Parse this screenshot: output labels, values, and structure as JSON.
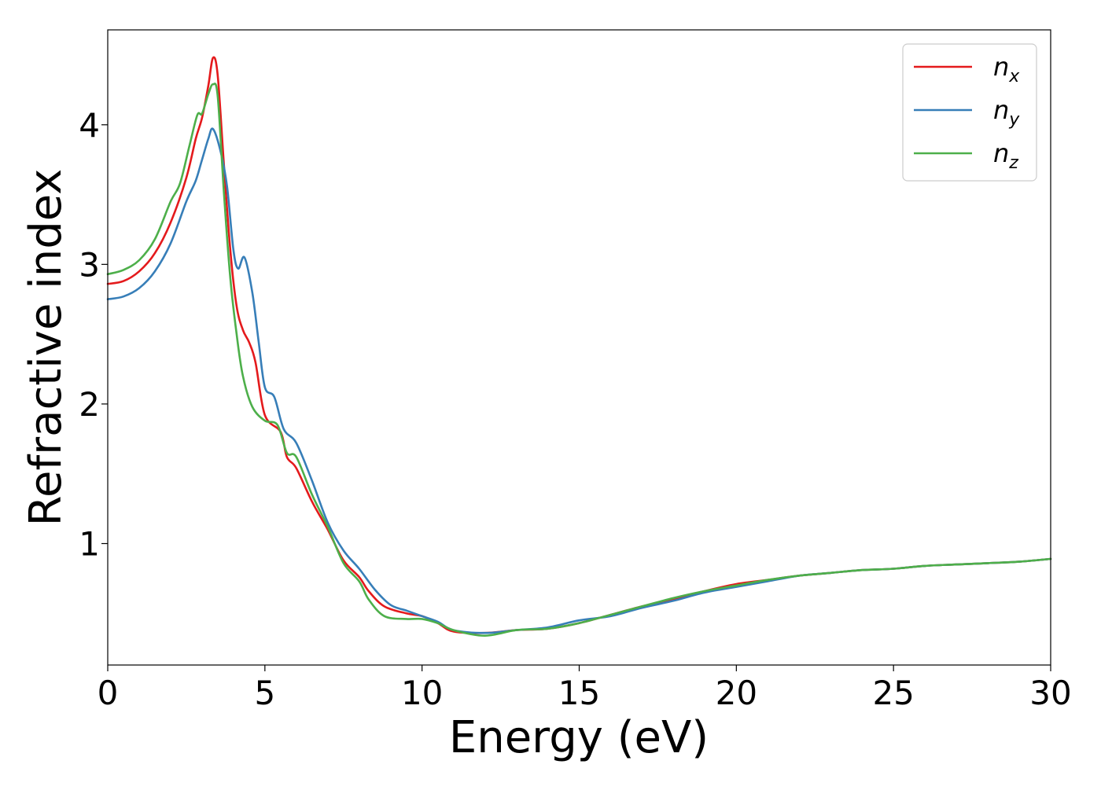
{
  "chart_data": {
    "type": "line",
    "title": "",
    "xlabel": "Energy (eV)",
    "ylabel": "Refractive index",
    "xlim": [
      0,
      30
    ],
    "ylim": [
      0.13,
      4.68
    ],
    "xticks": [
      0,
      5,
      10,
      15,
      20,
      25,
      30
    ],
    "yticks": [
      1,
      2,
      3,
      4
    ],
    "grid": false,
    "legend_position": "top-right",
    "series": [
      {
        "name": "n_x",
        "legend_base": "n",
        "legend_sub": "x",
        "color": "#e41a1c",
        "points": [
          [
            0,
            2.86
          ],
          [
            0.5,
            2.88
          ],
          [
            1.0,
            2.95
          ],
          [
            1.5,
            3.08
          ],
          [
            2.0,
            3.3
          ],
          [
            2.5,
            3.62
          ],
          [
            2.8,
            3.9
          ],
          [
            3.0,
            4.05
          ],
          [
            3.2,
            4.28
          ],
          [
            3.35,
            4.48
          ],
          [
            3.5,
            4.35
          ],
          [
            3.7,
            3.7
          ],
          [
            3.9,
            3.1
          ],
          [
            4.1,
            2.7
          ],
          [
            4.3,
            2.53
          ],
          [
            4.5,
            2.44
          ],
          [
            4.7,
            2.3
          ],
          [
            5.0,
            1.92
          ],
          [
            5.5,
            1.8
          ],
          [
            5.7,
            1.62
          ],
          [
            6.0,
            1.54
          ],
          [
            6.5,
            1.3
          ],
          [
            7.0,
            1.1
          ],
          [
            7.5,
            0.88
          ],
          [
            8.0,
            0.76
          ],
          [
            8.3,
            0.66
          ],
          [
            8.8,
            0.55
          ],
          [
            9.5,
            0.5
          ],
          [
            10,
            0.48
          ],
          [
            10.5,
            0.43
          ],
          [
            11,
            0.37
          ],
          [
            12,
            0.36
          ],
          [
            13,
            0.38
          ],
          [
            14,
            0.39
          ],
          [
            15,
            0.43
          ],
          [
            16,
            0.49
          ],
          [
            17,
            0.55
          ],
          [
            18,
            0.6
          ],
          [
            19,
            0.66
          ],
          [
            20,
            0.71
          ],
          [
            21,
            0.74
          ],
          [
            22,
            0.77
          ],
          [
            23,
            0.79
          ],
          [
            24,
            0.81
          ],
          [
            25,
            0.82
          ],
          [
            26,
            0.84
          ],
          [
            27,
            0.85
          ],
          [
            28,
            0.86
          ],
          [
            29,
            0.87
          ],
          [
            30,
            0.89
          ]
        ]
      },
      {
        "name": "n_y",
        "legend_base": "n",
        "legend_sub": "y",
        "color": "#377eb8",
        "points": [
          [
            0,
            2.75
          ],
          [
            0.5,
            2.77
          ],
          [
            1.0,
            2.83
          ],
          [
            1.5,
            2.95
          ],
          [
            2.0,
            3.15
          ],
          [
            2.5,
            3.45
          ],
          [
            2.8,
            3.6
          ],
          [
            3.0,
            3.75
          ],
          [
            3.2,
            3.9
          ],
          [
            3.35,
            3.97
          ],
          [
            3.6,
            3.8
          ],
          [
            3.8,
            3.55
          ],
          [
            4.0,
            3.1
          ],
          [
            4.15,
            2.97
          ],
          [
            4.35,
            3.05
          ],
          [
            4.6,
            2.8
          ],
          [
            4.8,
            2.45
          ],
          [
            5.0,
            2.12
          ],
          [
            5.3,
            2.05
          ],
          [
            5.6,
            1.82
          ],
          [
            6.0,
            1.72
          ],
          [
            6.5,
            1.45
          ],
          [
            7.0,
            1.15
          ],
          [
            7.5,
            0.95
          ],
          [
            8.0,
            0.82
          ],
          [
            8.5,
            0.67
          ],
          [
            9.0,
            0.56
          ],
          [
            9.5,
            0.52
          ],
          [
            10,
            0.48
          ],
          [
            10.5,
            0.44
          ],
          [
            11,
            0.38
          ],
          [
            12,
            0.36
          ],
          [
            13,
            0.38
          ],
          [
            14,
            0.4
          ],
          [
            15,
            0.45
          ],
          [
            16,
            0.48
          ],
          [
            17,
            0.54
          ],
          [
            18,
            0.59
          ],
          [
            19,
            0.65
          ],
          [
            20,
            0.69
          ],
          [
            21,
            0.73
          ],
          [
            22,
            0.77
          ],
          [
            23,
            0.79
          ],
          [
            24,
            0.81
          ],
          [
            25,
            0.82
          ],
          [
            26,
            0.84
          ],
          [
            27,
            0.85
          ],
          [
            28,
            0.86
          ],
          [
            29,
            0.87
          ],
          [
            30,
            0.89
          ]
        ]
      },
      {
        "name": "n_z",
        "legend_base": "n",
        "legend_sub": "z",
        "color": "#4daf4a",
        "points": [
          [
            0,
            2.93
          ],
          [
            0.5,
            2.96
          ],
          [
            1.0,
            3.03
          ],
          [
            1.5,
            3.18
          ],
          [
            2.0,
            3.45
          ],
          [
            2.3,
            3.58
          ],
          [
            2.6,
            3.85
          ],
          [
            2.85,
            4.07
          ],
          [
            3.0,
            4.08
          ],
          [
            3.2,
            4.22
          ],
          [
            3.35,
            4.29
          ],
          [
            3.5,
            4.2
          ],
          [
            3.7,
            3.5
          ],
          [
            3.9,
            2.9
          ],
          [
            4.1,
            2.5
          ],
          [
            4.3,
            2.2
          ],
          [
            4.6,
            1.98
          ],
          [
            5.0,
            1.88
          ],
          [
            5.4,
            1.85
          ],
          [
            5.7,
            1.65
          ],
          [
            6.0,
            1.62
          ],
          [
            6.5,
            1.35
          ],
          [
            7.0,
            1.12
          ],
          [
            7.5,
            0.86
          ],
          [
            8.0,
            0.73
          ],
          [
            8.3,
            0.6
          ],
          [
            8.8,
            0.48
          ],
          [
            9.5,
            0.46
          ],
          [
            10,
            0.46
          ],
          [
            10.5,
            0.43
          ],
          [
            11,
            0.38
          ],
          [
            12,
            0.34
          ],
          [
            13,
            0.38
          ],
          [
            14,
            0.39
          ],
          [
            15,
            0.43
          ],
          [
            16,
            0.49
          ],
          [
            17,
            0.55
          ],
          [
            18,
            0.61
          ],
          [
            19,
            0.66
          ],
          [
            20,
            0.7
          ],
          [
            21,
            0.74
          ],
          [
            22,
            0.77
          ],
          [
            23,
            0.79
          ],
          [
            24,
            0.81
          ],
          [
            25,
            0.82
          ],
          [
            26,
            0.84
          ],
          [
            27,
            0.85
          ],
          [
            28,
            0.86
          ],
          [
            29,
            0.87
          ],
          [
            30,
            0.89
          ]
        ]
      }
    ]
  }
}
